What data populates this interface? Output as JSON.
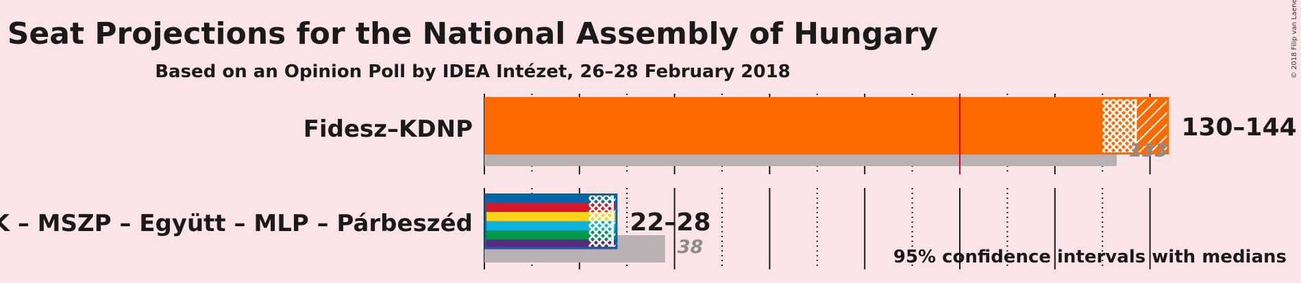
{
  "chart_data": {
    "type": "bar",
    "title": "Seat Projections for the National Assembly of Hungary",
    "subtitle": "Based on an Opinion Poll by IDEA Intézet, 26–28 February 2018",
    "copyright": "© 2018 Filip van Laenen",
    "note": "95% confidence intervals with medians",
    "majority": 100,
    "xlim": [
      0,
      150
    ],
    "solid_ticks": [
      0,
      20,
      40,
      60,
      80,
      100,
      120,
      140
    ],
    "dotted_ticks": [
      10,
      30,
      50,
      70,
      90,
      110,
      130
    ],
    "parties": [
      {
        "name": "Fidesz–KDNP",
        "range_label": "130–144",
        "prev_label": "133",
        "low": 130,
        "median": 137,
        "high": 144,
        "previous": 133,
        "colors": [
          "#ff6a00"
        ]
      },
      {
        "name": "DK – MSZP – Együtt – MLP – Párbeszéd",
        "range_label": "22–28",
        "prev_label": "38",
        "low": 22,
        "median": 27,
        "high": 28,
        "previous": 38,
        "colors": [
          "#0068a8",
          "#d7182a",
          "#ffd21a",
          "#0fb2db",
          "#009a4a",
          "#5a2a82"
        ]
      }
    ]
  }
}
